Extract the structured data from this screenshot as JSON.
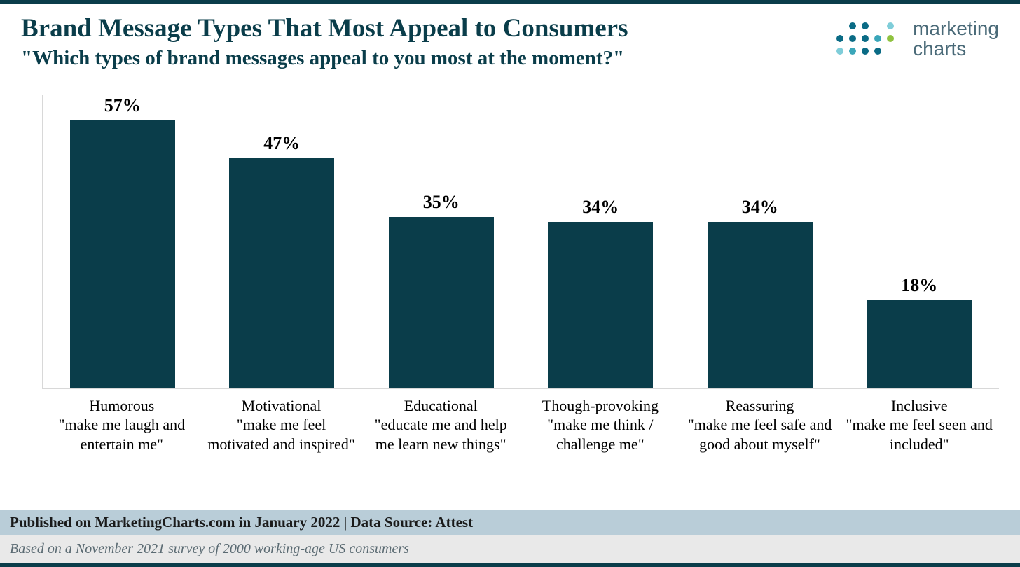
{
  "header": {
    "title": "Brand Message Types That Most Appeal to Consumers",
    "subtitle": "\"Which types of brand messages appeal to you most at the moment?\"",
    "logo_text_line1": "marketing",
    "logo_text_line2": "charts",
    "logo_dot_colors": {
      "teal_dark": "#0a6b85",
      "teal_mid": "#3aa6b9",
      "teal_light": "#7fcdd9",
      "green": "#8fc23f"
    }
  },
  "chart": {
    "type": "bar",
    "max_value": 60,
    "bar_color": "#0a3d4a",
    "value_fontsize": 26,
    "label_fontsize": 22,
    "title_color": "#0a3d4a",
    "background_color": "#ffffff",
    "axis_color": "#d8d8d8",
    "bar_width_pct": 66,
    "bars": [
      {
        "value": 57,
        "value_label": "57%",
        "title": "Humorous",
        "desc": "\"make me laugh and entertain me\""
      },
      {
        "value": 47,
        "value_label": "47%",
        "title": "Motivational",
        "desc": "\"make me feel motivated and inspired\""
      },
      {
        "value": 35,
        "value_label": "35%",
        "title": "Educational",
        "desc": "\"educate me and help me learn new things\""
      },
      {
        "value": 34,
        "value_label": "34%",
        "title": "Though-provoking",
        "desc": "\"make me think / challenge me\""
      },
      {
        "value": 34,
        "value_label": "34%",
        "title": "Reassuring",
        "desc": "\"make me feel safe and good about myself\""
      },
      {
        "value": 18,
        "value_label": "18%",
        "title": "Inclusive",
        "desc": "\"make me feel seen and included\""
      }
    ]
  },
  "footer": {
    "published": "Published on MarketingCharts.com in January 2022 | Data Source: Attest",
    "note": "Based on a November 2021 survey of 2000 working-age US consumers",
    "pub_bg": "#b9cdd8",
    "note_bg": "#e9e9e9"
  }
}
